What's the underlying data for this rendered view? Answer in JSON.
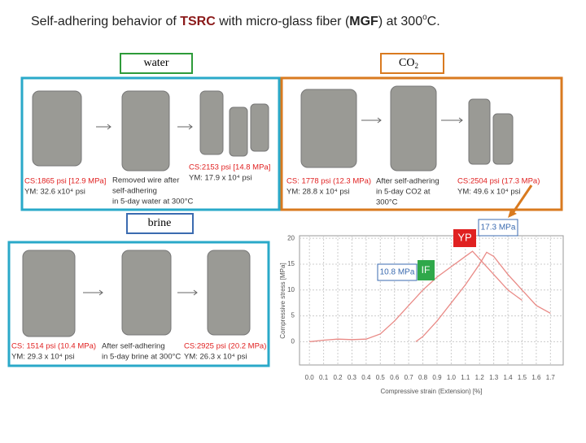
{
  "title": {
    "parts": [
      "Self-adhering behavior of ",
      "TSRC",
      " with micro-glass fiber (",
      "MGF",
      ") at 300",
      "o",
      "C."
    ]
  },
  "water": {
    "label": "water",
    "captions": [
      [
        "CS:1865 psi [12.9 MPa]",
        "YM: 32.6 x10⁴ psi"
      ],
      [
        "Removed wire after",
        "self-adhering",
        "in 5-day water at 300°C"
      ],
      [
        "CS:2153 psi [14.8 MPa]",
        "YM: 17.9 x 10⁴ psi"
      ]
    ]
  },
  "co2": {
    "label": [
      "CO",
      "2"
    ],
    "captions": [
      [
        "CS: 1778 psi (12.3 MPa)",
        "YM: 28.8 x 10⁴ psi"
      ],
      [
        "After self-adhering",
        "in 5-day CO2 at",
        "300°C"
      ],
      [
        "CS:2504 psi (17.3 MPa)",
        "YM: 49.6 x 10⁴ psi"
      ]
    ]
  },
  "brine": {
    "label": "brine",
    "captions": [
      [
        "CS: 1514 psi (10.4 MPa)",
        "YM: 29.3 x 10⁴ psi"
      ],
      [
        "After self-adhering",
        "in 5-day brine at 300°C"
      ],
      [
        "CS:2925 psi (20.2 MPa)",
        "YM: 26.3 x 10⁴ psi"
      ]
    ]
  },
  "chart_data": {
    "type": "line",
    "xlabel": "Compressive strain (Extension) [%]",
    "ylabel": "Compressive stress [MPa]",
    "xlim": [
      -0.07,
      1.79
    ],
    "ylim": [
      -4.5,
      20.5
    ],
    "xticks": [
      {
        "value": 0,
        "label": "0.0"
      },
      0.1,
      0.2,
      0.3,
      0.4,
      0.5,
      0.6,
      0.7,
      0.8,
      0.9,
      {
        "value": 1,
        "label": "1.0"
      },
      1.1,
      1.2,
      1.3,
      1.4,
      1.5,
      1.6,
      1.7
    ],
    "yticks": [
      0,
      5,
      10,
      15,
      20
    ],
    "grid": true,
    "series": [
      {
        "color": "#e98a86",
        "x": [
          0,
          0.1,
          0.2,
          0.3,
          0.4,
          0.5,
          0.6,
          0.7,
          0.8,
          0.9,
          1.0,
          1.1,
          1.15,
          1.2,
          1.3,
          1.4,
          1.5
        ],
        "values": [
          0,
          0.3,
          0.5,
          0.4,
          0.5,
          1.5,
          4,
          7,
          10,
          12.5,
          14.5,
          16.5,
          17.5,
          16,
          13,
          10,
          8
        ]
      },
      {
        "color": "#e98a86",
        "x": [
          0.75,
          0.8,
          0.9,
          1.0,
          1.1,
          1.2,
          1.25,
          1.3,
          1.4,
          1.5,
          1.6,
          1.7
        ],
        "values": [
          0,
          1,
          4,
          7.5,
          11,
          15,
          17.3,
          16.5,
          13,
          10,
          7,
          5.5
        ]
      }
    ],
    "annotations": [
      "YP",
      "17.3 MPa",
      "10.8 MPa",
      "IF"
    ]
  }
}
